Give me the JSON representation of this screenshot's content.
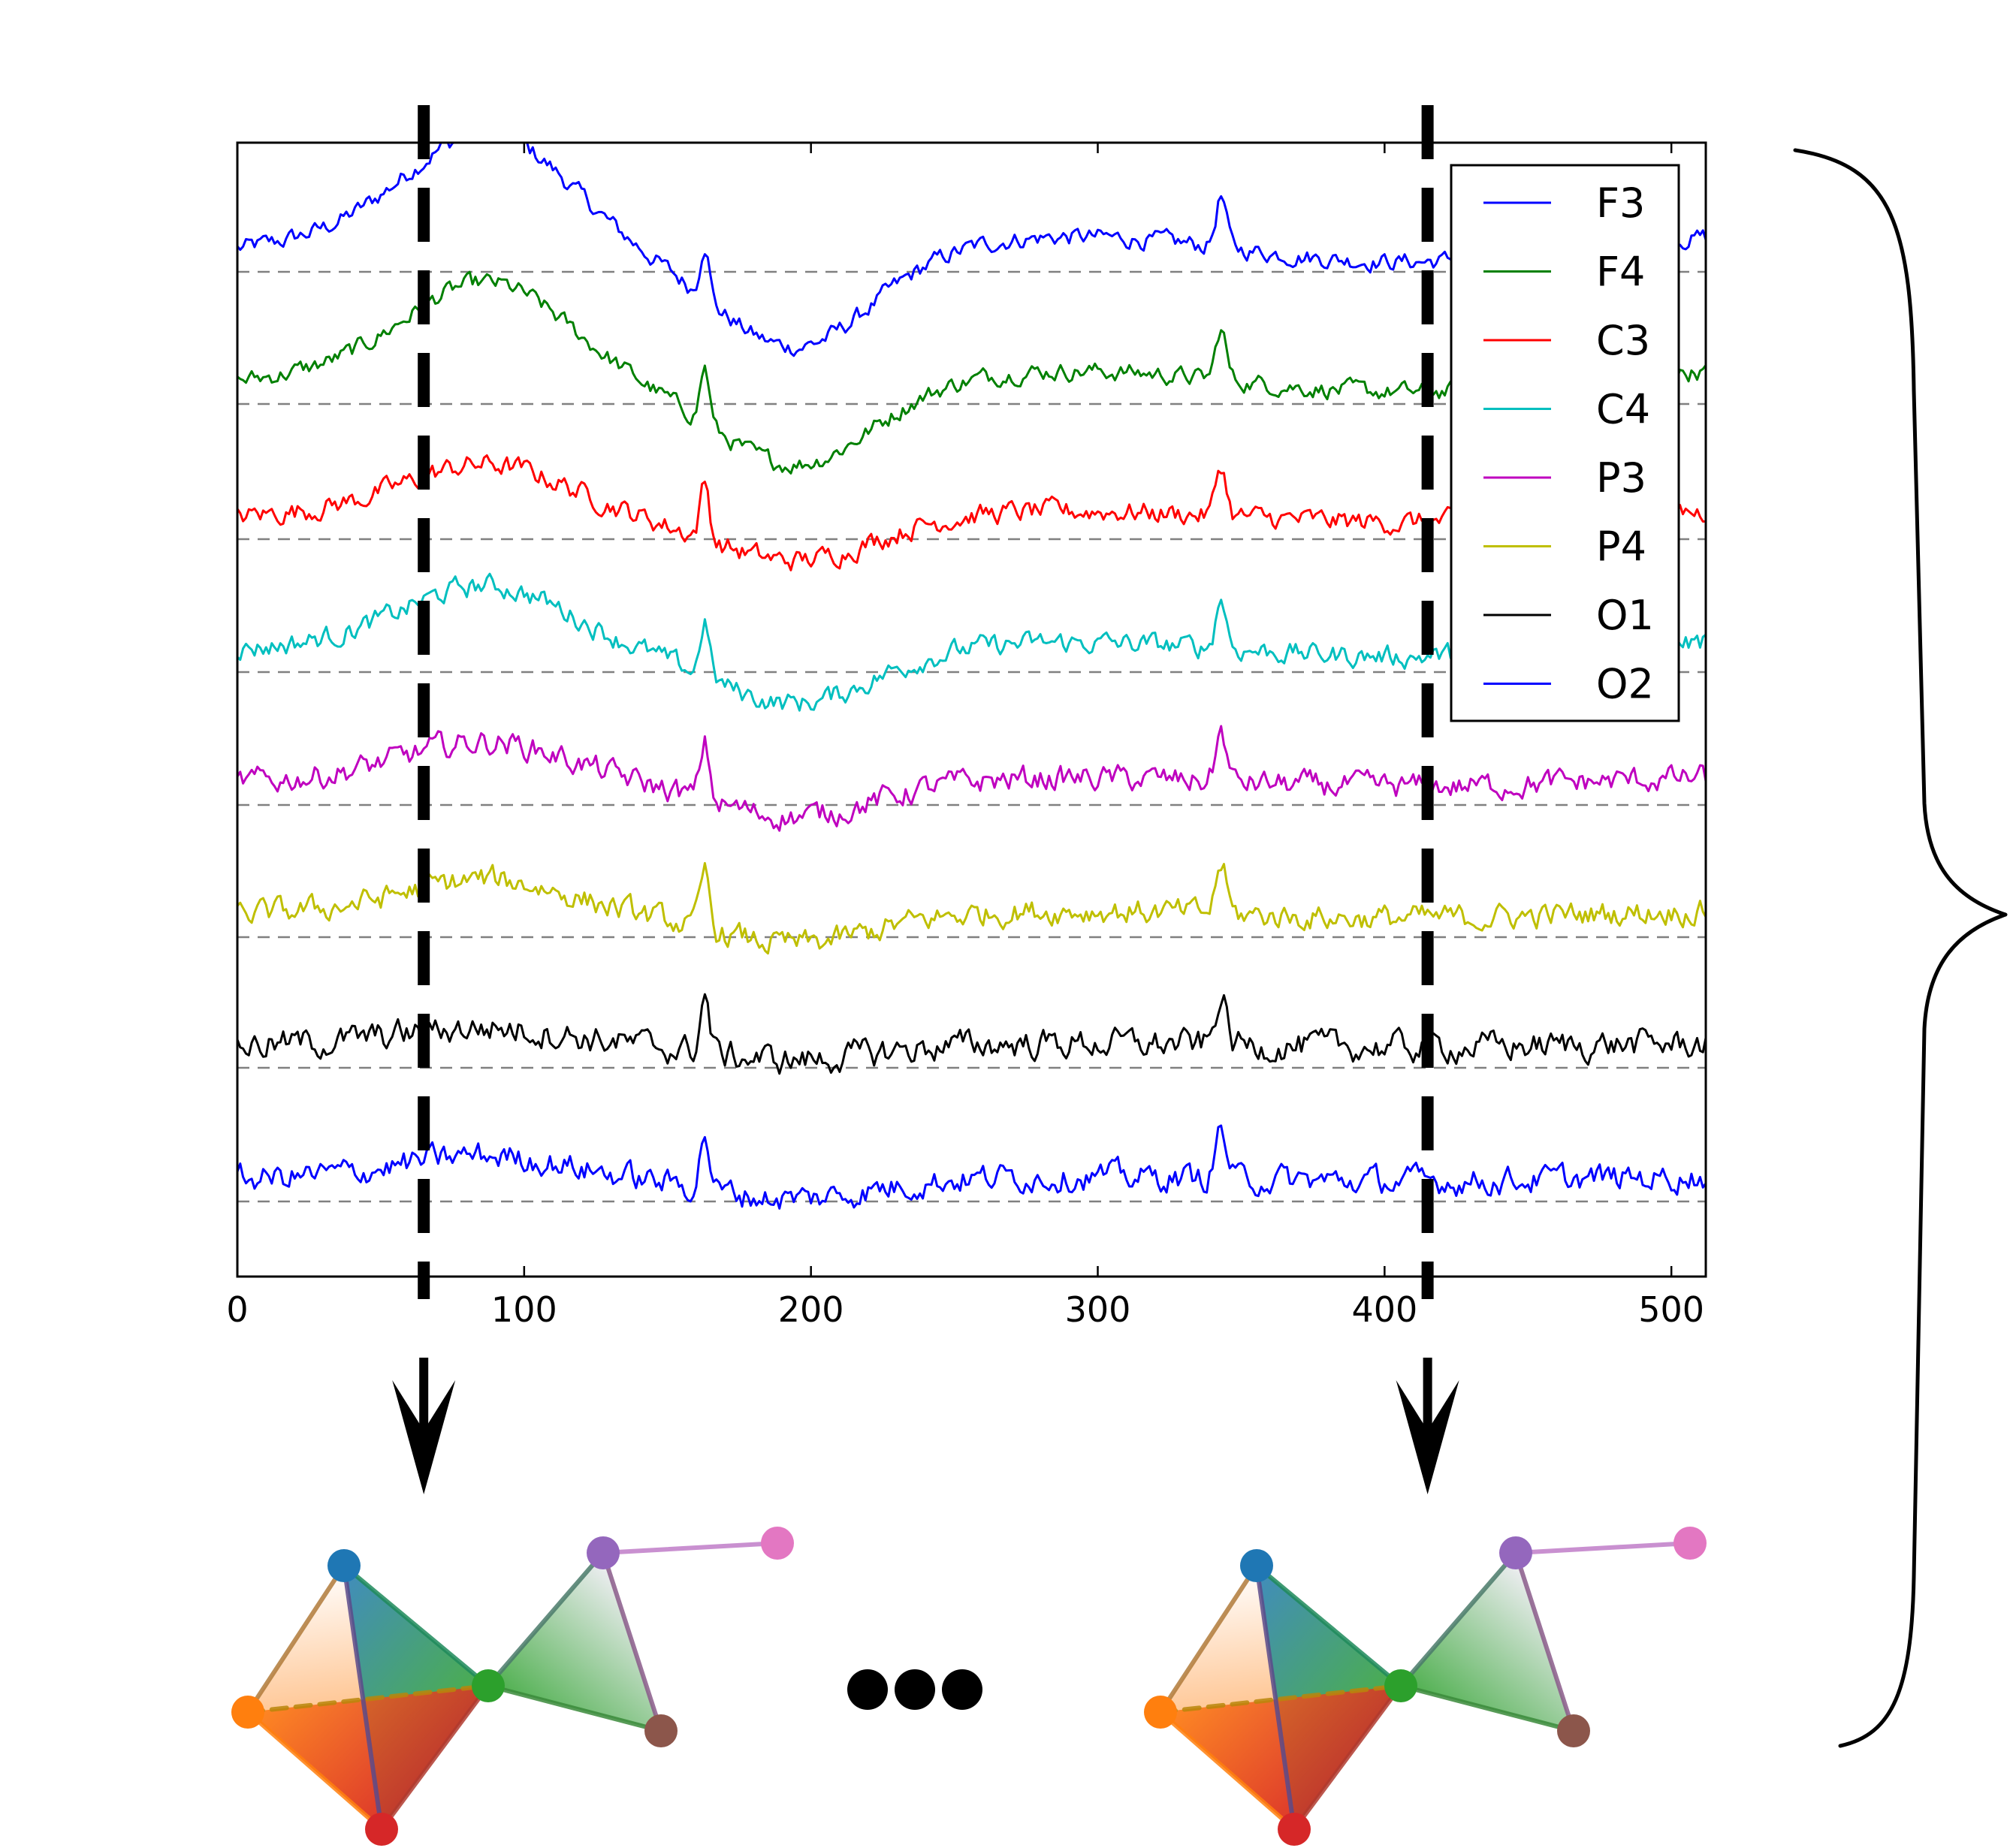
{
  "chart_data": {
    "type": "line",
    "title": "",
    "xlabel": "",
    "ylabel": "",
    "xlim": [
      0,
      512
    ],
    "x_ticks": [
      "0",
      "100",
      "200",
      "300",
      "400",
      "500"
    ],
    "grid": false,
    "legend_position": "top-right",
    "series": [
      {
        "name": "F3",
        "color": "#0000ff"
      },
      {
        "name": "F4",
        "color": "#008000"
      },
      {
        "name": "C3",
        "color": "#ff0000"
      },
      {
        "name": "C4",
        "color": "#00bfbf"
      },
      {
        "name": "P3",
        "color": "#bf00bf"
      },
      {
        "name": "P4",
        "color": "#bfbf00"
      },
      {
        "name": "O1",
        "color": "#000000"
      },
      {
        "name": "O2",
        "color": "#0000ff"
      }
    ],
    "time_markers_x": [
      65,
      415
    ]
  },
  "graph_colors": {
    "n1": "#1f77b4",
    "n2": "#ff7f0e",
    "n3": "#2ca02c",
    "n4": "#d62728",
    "n5": "#9467bd",
    "n6": "#8c564b",
    "n7": "#e377c2"
  }
}
